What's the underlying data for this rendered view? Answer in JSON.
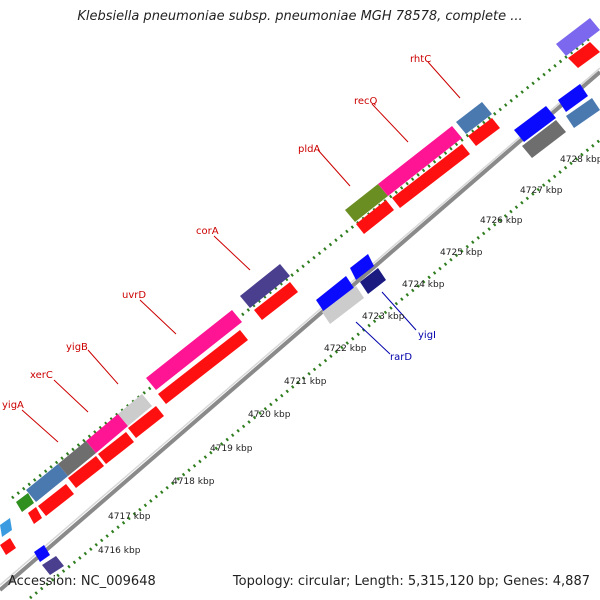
{
  "title": "Klebsiella pneumoniae subsp. pneumoniae MGH 78578, complete ...",
  "footer": {
    "accession": "Accession: NC_009648",
    "summary": "Topology: circular; Length: 5,315,120 bp; Genes: 4,887"
  },
  "colors": {
    "backbone": "#8c8c8c",
    "tick": "#2e7d1e",
    "label_upper": "#cc0000",
    "label_lower": "#0000aa"
  },
  "scale_labels": [
    "4716 kbp",
    "4717 kbp",
    "4718 kbp",
    "4719 kbp",
    "4720 kbp",
    "4721 kbp",
    "4722 kbp",
    "4723 kbp",
    "4724 kbp",
    "4725 kbp",
    "4726 kbp",
    "4727 kbp",
    "4728 kbp"
  ],
  "gene_labels_upper": [
    "yigA",
    "xerC",
    "yigB",
    "uvrD",
    "corA",
    "pldA",
    "recQ",
    "rhtC"
  ],
  "gene_labels_lower": [
    "rarD",
    "yigI"
  ],
  "features": [
    {
      "color": "#3a9be0"
    },
    {
      "color": "#3a9be0"
    },
    {
      "color": "#e0007a"
    },
    {
      "color": "#ff1010"
    },
    {
      "color": "#ff1010"
    },
    {
      "color": "#2f8f1f"
    },
    {
      "color": "#4a79b0"
    },
    {
      "color": "#6e6e6e"
    },
    {
      "color": "#ff1493"
    },
    {
      "color": "#cccccc"
    },
    {
      "color": "#ff1493"
    },
    {
      "color": "#4a3f8f"
    },
    {
      "color": "#6b8e23"
    },
    {
      "color": "#ff1493"
    },
    {
      "color": "#4a79b0"
    },
    {
      "color": "#7b68ee"
    },
    {
      "color": "#0a0aff"
    },
    {
      "color": "#1a1a80"
    },
    {
      "color": "#1a1a80"
    },
    {
      "color": "#555555"
    }
  ]
}
